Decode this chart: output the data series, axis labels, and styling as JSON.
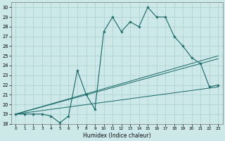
{
  "xlabel": "Humidex (Indice chaleur)",
  "background_color": "#cce8e8",
  "grid_color": "#aacece",
  "line_color": "#1a6868",
  "xlim": [
    -0.5,
    23.5
  ],
  "ylim": [
    18,
    30.5
  ],
  "yticks": [
    18,
    19,
    20,
    21,
    22,
    23,
    24,
    25,
    26,
    27,
    28,
    29,
    30
  ],
  "xticks": [
    0,
    1,
    2,
    3,
    4,
    5,
    6,
    7,
    8,
    9,
    10,
    11,
    12,
    13,
    14,
    15,
    16,
    17,
    18,
    19,
    20,
    21,
    22,
    23
  ],
  "line1_x": [
    0,
    1,
    2,
    3,
    4,
    5,
    6,
    7,
    8,
    9,
    10,
    11,
    12,
    13,
    14,
    15,
    16,
    17,
    18,
    19,
    20,
    21,
    22,
    23
  ],
  "line1_y": [
    19.0,
    19.0,
    19.0,
    19.0,
    18.8,
    18.1,
    18.8,
    23.5,
    21.0,
    19.5,
    27.5,
    29.0,
    27.5,
    28.5,
    28.0,
    30.0,
    29.0,
    29.0,
    27.0,
    26.0,
    24.8,
    24.2,
    21.8,
    22.0
  ],
  "line2_x": [
    0,
    23
  ],
  "line2_y": [
    19.0,
    21.8
  ],
  "line3_x": [
    0,
    23
  ],
  "line3_y": [
    19.0,
    24.7
  ],
  "line4_x": [
    0,
    23
  ],
  "line4_y": [
    19.0,
    25.0
  ]
}
